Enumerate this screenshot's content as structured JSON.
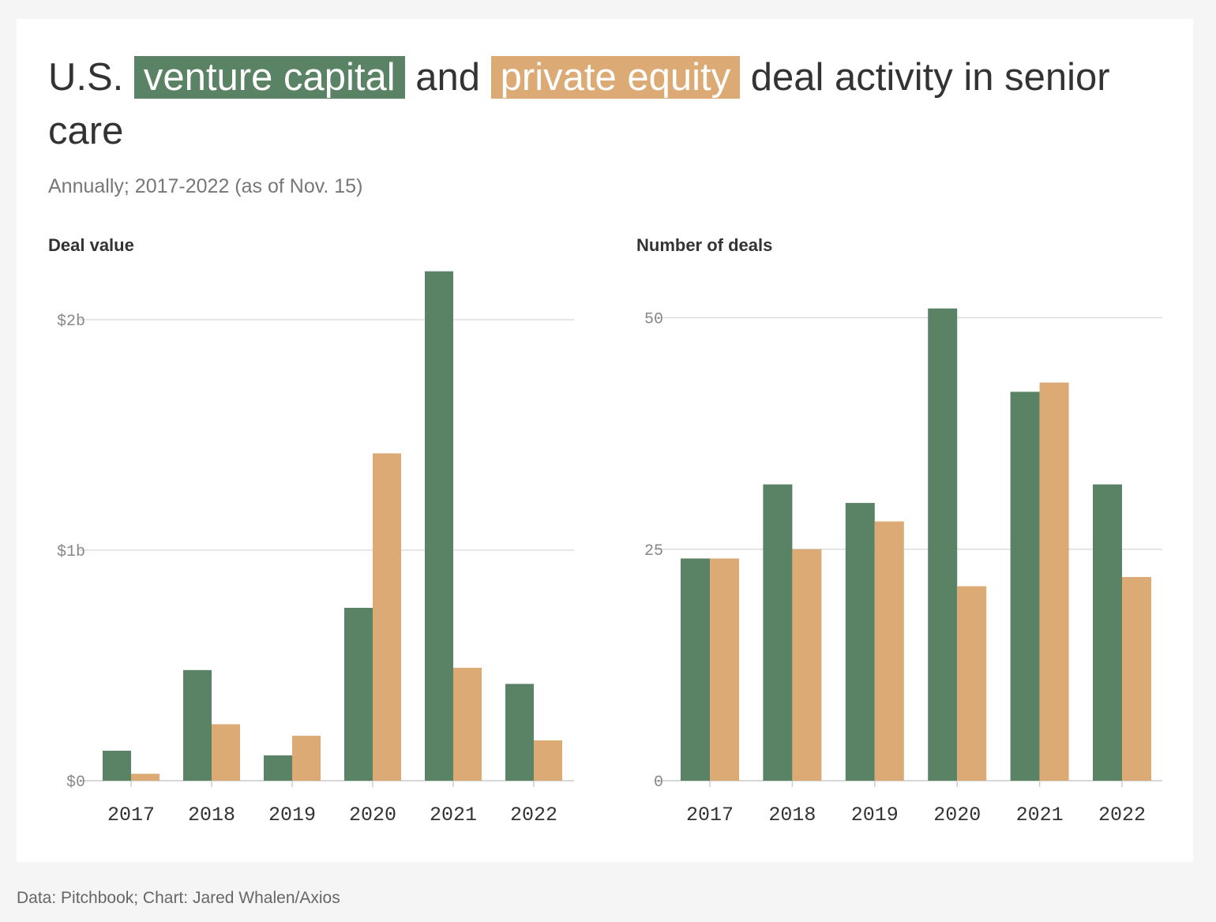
{
  "title": {
    "prefix": "U.S.",
    "highlight_vc": "venture capital",
    "middle": "and",
    "highlight_pe": "private equity",
    "suffix": "deal activity in senior care"
  },
  "subtitle": "Annually; 2017-2022 (as of Nov. 15)",
  "footer": "Data: Pitchbook; Chart: Jared Whalen/Axios",
  "colors": {
    "venture_capital": "#5a8264",
    "private_equity": "#dcab75",
    "grid": "#dddddd",
    "axis": "#cccccc",
    "tick_text": "#888888",
    "category_text": "#333333"
  },
  "chart_data": [
    {
      "type": "bar",
      "panel_title": "Deal value",
      "categories": [
        "2017",
        "2018",
        "2019",
        "2020",
        "2021",
        "2022"
      ],
      "series": [
        {
          "name": "venture capital",
          "values": [
            0.13,
            0.48,
            0.11,
            0.75,
            2.21,
            0.42
          ]
        },
        {
          "name": "private equity",
          "values": [
            0.03,
            0.245,
            0.195,
            1.42,
            0.49,
            0.175
          ]
        }
      ],
      "ylim": [
        0,
        2.2
      ],
      "yticks": [
        {
          "value": 0,
          "label": "$0"
        },
        {
          "value": 1,
          "label": "$1b"
        },
        {
          "value": 2,
          "label": "$2b"
        }
      ],
      "grid": true
    },
    {
      "type": "bar",
      "panel_title": "Number of deals",
      "categories": [
        "2017",
        "2018",
        "2019",
        "2020",
        "2021",
        "2022"
      ],
      "series": [
        {
          "name": "venture capital",
          "values": [
            24,
            32,
            30,
            51,
            42,
            32
          ]
        },
        {
          "name": "private equity",
          "values": [
            24,
            25,
            28,
            21,
            43,
            22
          ]
        }
      ],
      "ylim": [
        0,
        51
      ],
      "yticks": [
        {
          "value": 0,
          "label": "0"
        },
        {
          "value": 25,
          "label": "25"
        },
        {
          "value": 50,
          "label": "50"
        }
      ],
      "grid": true
    }
  ]
}
